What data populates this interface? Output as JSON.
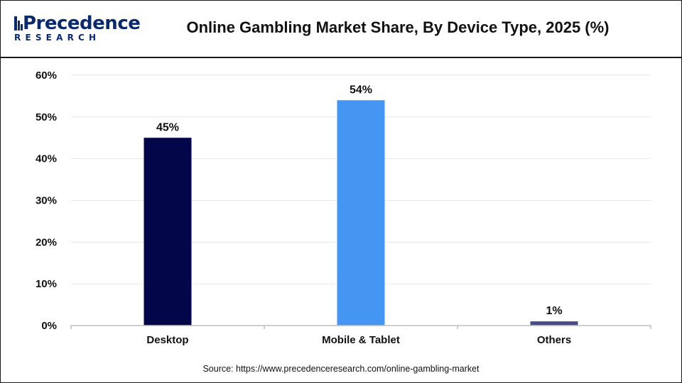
{
  "brand": {
    "name": "Precedence",
    "sub": "RESEARCH"
  },
  "source": "Source: https://www.precedenceresearch.com/online-gambling-market",
  "colors": {
    "brand": "#0b2a6b",
    "desktop": "#03074a",
    "mobile": "#4496f2",
    "others": "#4a4a8a",
    "grid": "#e6e6e6",
    "axis": "#bfbfbf",
    "text": "#111111"
  },
  "chart_data": {
    "type": "bar",
    "title": "Online Gambling Market Share, By Device Type, 2025 (%)",
    "categories": [
      "Desktop",
      "Mobile & Tablet",
      "Others"
    ],
    "values": [
      45,
      54,
      1
    ],
    "data_labels": [
      "45%",
      "54%",
      "1%"
    ],
    "bar_colors": [
      "#03074a",
      "#4496f2",
      "#4a4a8a"
    ],
    "ylim": [
      0,
      60
    ],
    "yticks": [
      0,
      10,
      20,
      30,
      40,
      50,
      60
    ],
    "ytick_labels": [
      "0%",
      "10%",
      "20%",
      "30%",
      "40%",
      "50%",
      "60%"
    ],
    "xlabel": "",
    "ylabel": "",
    "grid": true,
    "legend": "none"
  }
}
